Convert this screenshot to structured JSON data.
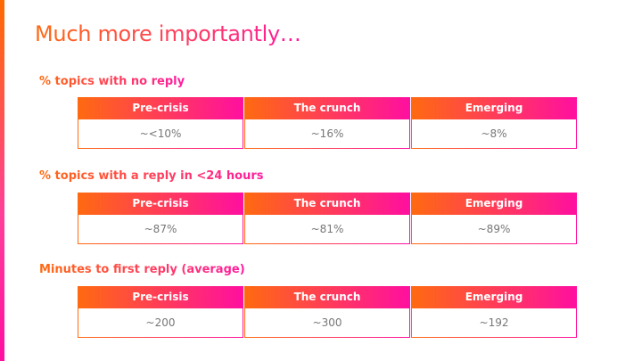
{
  "title": "Much more importantly…",
  "columns": [
    "Pre-crisis",
    "The crunch",
    "Emerging"
  ],
  "sections": [
    {
      "label": "% topics with no reply",
      "values": [
        "~<10%",
        "~16%",
        "~8%"
      ]
    },
    {
      "label": "% topics with a reply in <24 hours",
      "values": [
        "~87%",
        "~81%",
        "~89%"
      ]
    },
    {
      "label": "Minutes to first reply (average)",
      "values": [
        "~200",
        "~300",
        "~192"
      ]
    }
  ]
}
